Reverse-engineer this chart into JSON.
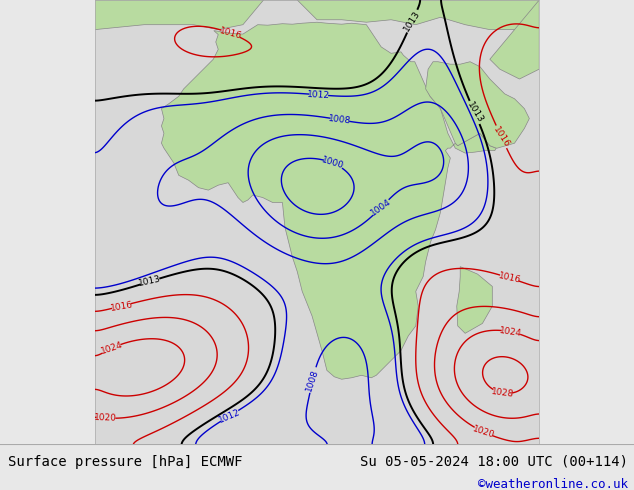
{
  "title_left": "Surface pressure [hPa] ECMWF",
  "title_right": "Su 05-05-2024 18:00 UTC (00+114)",
  "copyright": "©weatheronline.co.uk",
  "bg_color": "#e8e8e8",
  "ocean_color": "#d8d8d8",
  "land_color": "#b8dba0",
  "land_edge_color": "#888888",
  "footer_bg": "#e8e8e8",
  "footer_line_color": "#aaaaaa",
  "title_fontsize": 10,
  "copyright_color": "#0000cc",
  "copyright_fontsize": 9,
  "contour_blue": "#0000cc",
  "contour_black": "#000000",
  "contour_red": "#cc0000",
  "label_fontsize": 6.5,
  "lon_min": -30,
  "lon_max": 60,
  "lat_min": -48,
  "lat_max": 42
}
